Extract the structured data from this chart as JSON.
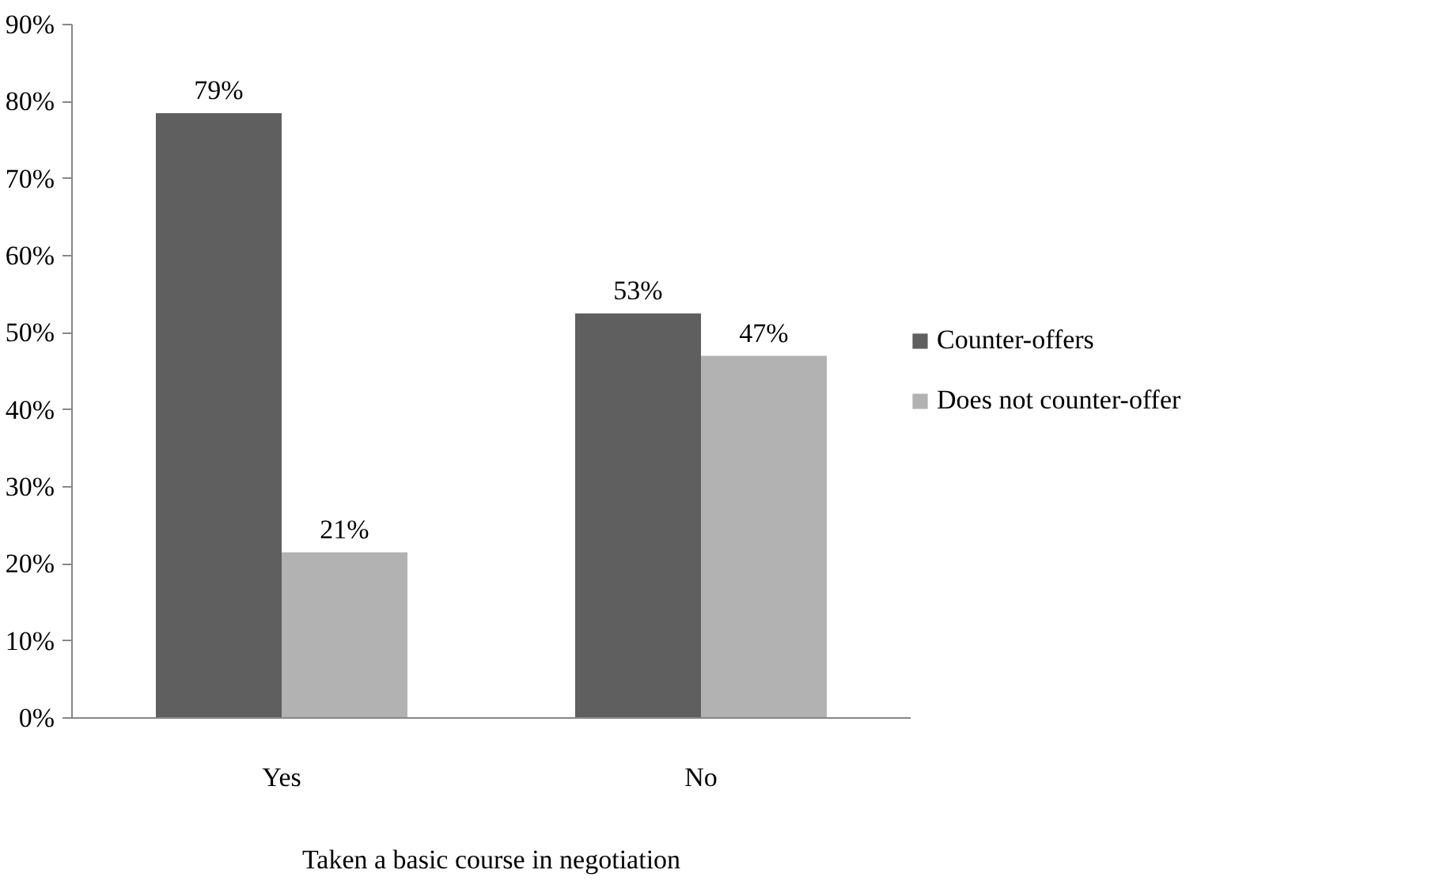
{
  "chart_data": {
    "type": "bar",
    "xlabel": "Taken a basic course in negotiation",
    "categories": [
      "Yes",
      "No"
    ],
    "series": [
      {
        "name": "Counter-offers",
        "color": "#5f5f5f",
        "values": [
          78.5,
          52.5
        ],
        "value_labels": [
          "79%",
          "53%"
        ]
      },
      {
        "name": "Does not counter-offer",
        "color": "#b2b2b2",
        "values": [
          21.5,
          47
        ],
        "value_labels": [
          "21%",
          "47%"
        ]
      }
    ],
    "ylim": [
      0,
      90
    ],
    "yticks": [
      {
        "value": 0,
        "label": "0%"
      },
      {
        "value": 10,
        "label": "10%"
      },
      {
        "value": 20,
        "label": "20%"
      },
      {
        "value": 30,
        "label": "30%"
      },
      {
        "value": 40,
        "label": "40%"
      },
      {
        "value": 50,
        "label": "50%"
      },
      {
        "value": 60,
        "label": "60%"
      },
      {
        "value": 70,
        "label": "70%"
      },
      {
        "value": 80,
        "label": "80%"
      },
      {
        "value": 90,
        "label": "90%"
      }
    ],
    "grid": false,
    "legend": "right"
  }
}
